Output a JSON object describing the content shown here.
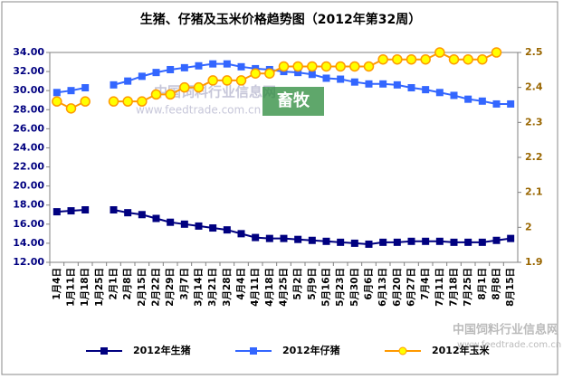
{
  "chart_data": {
    "type": "line",
    "title": "生猪、仔猪及玉米价格趋势图（2012年第32周）",
    "categories": [
      "1月4日",
      "1月11日",
      "1月18日",
      "1月25日",
      "2月1日",
      "2月8日",
      "2月15日",
      "2月22日",
      "2月29日",
      "3月7日",
      "3月14日",
      "3月21日",
      "3月28日",
      "4月4日",
      "4月11日",
      "4月18日",
      "4月25日",
      "5月2日",
      "5月9日",
      "5月16日",
      "5月23日",
      "5月30日",
      "6月6日",
      "6月13日",
      "6月20日",
      "6月27日",
      "7月4日",
      "7月11日",
      "7月18日",
      "7月25日",
      "8月1日",
      "8月8日",
      "8月15日"
    ],
    "series": [
      {
        "name": "2012年生猪",
        "color": "#000080",
        "marker": "square",
        "values": [
          17.3,
          17.4,
          17.5,
          null,
          17.5,
          17.2,
          17.0,
          16.6,
          16.2,
          16.0,
          15.8,
          15.6,
          15.4,
          15.0,
          14.6,
          14.5,
          14.5,
          14.4,
          14.3,
          14.2,
          14.1,
          14.0,
          13.9,
          14.1,
          14.1,
          14.2,
          14.2,
          14.2,
          14.1,
          14.1,
          14.1,
          14.3,
          14.5
        ]
      },
      {
        "name": "2012年仔猪",
        "color": "#3366ff",
        "marker": "square",
        "values": [
          29.8,
          30.0,
          30.3,
          null,
          30.6,
          31.0,
          31.5,
          31.9,
          32.2,
          32.4,
          32.6,
          32.8,
          32.8,
          32.5,
          32.3,
          32.2,
          32.0,
          31.9,
          31.7,
          31.3,
          31.2,
          30.9,
          30.7,
          30.7,
          30.6,
          30.3,
          30.1,
          29.8,
          29.5,
          29.1,
          28.9,
          28.6,
          28.6
        ]
      },
      {
        "name": "2012年玉米",
        "color": "#ff9900",
        "marker": "circle",
        "axis": "y2",
        "values": [
          2.36,
          2.34,
          2.36,
          null,
          2.36,
          2.36,
          2.36,
          2.38,
          2.38,
          2.4,
          2.4,
          2.42,
          2.42,
          2.42,
          2.44,
          2.44,
          2.46,
          2.46,
          2.46,
          2.46,
          2.46,
          2.46,
          2.46,
          2.48,
          2.48,
          2.48,
          2.48,
          2.5,
          2.48,
          2.48,
          2.48,
          2.5,
          null
        ]
      }
    ],
    "ylim": [
      12,
      34
    ],
    "yticks": [
      {
        "value": 12,
        "label": "12.00"
      },
      {
        "value": 14,
        "label": "14.00"
      },
      {
        "value": 16,
        "label": "16.00"
      },
      {
        "value": 18,
        "label": "18.00"
      },
      {
        "value": 20,
        "label": "20.00"
      },
      {
        "value": 22,
        "label": "22.00"
      },
      {
        "value": 24,
        "label": "24.00"
      },
      {
        "value": 26,
        "label": "26.00"
      },
      {
        "value": 28,
        "label": "28.00"
      },
      {
        "value": 30,
        "label": "30.00"
      },
      {
        "value": 32,
        "label": "32.00"
      },
      {
        "value": 34,
        "label": "34.00"
      }
    ],
    "y2lim": [
      1.9,
      2.5
    ],
    "y2ticks": [
      1.9,
      2,
      2.1,
      2.2,
      2.3,
      2.4,
      2.5
    ],
    "grid": false,
    "legend": "bottom",
    "annotations": [
      "中国饲料行业信息网",
      "www.feedtrade.com.cn",
      "畜牧",
      "中国饲料行业信息网",
      "www.feedtrade.com.cn"
    ]
  }
}
